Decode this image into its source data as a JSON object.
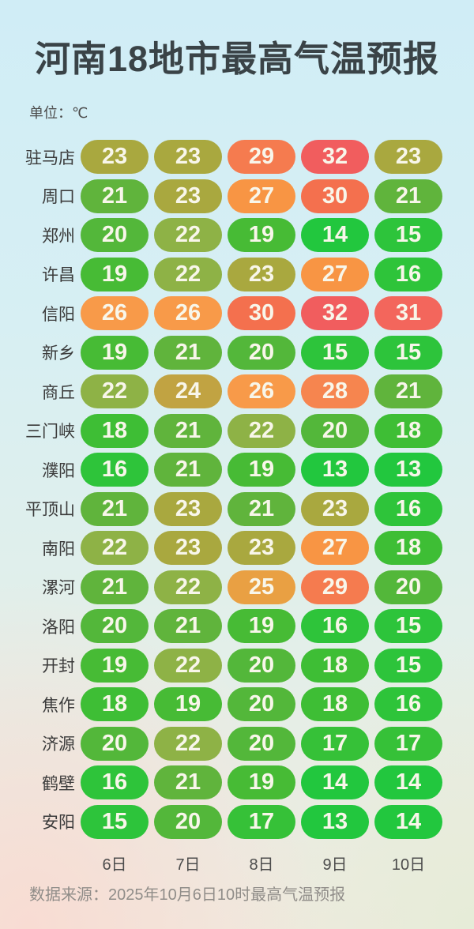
{
  "title": "河南18地市最高气温预报",
  "unit_label": "单位：℃",
  "footer": "数据来源：2025年10月6日10时最高气温预报",
  "chart_data": {
    "type": "heatmap",
    "title": "河南18地市最高气温预报",
    "unit": "℃",
    "columns": [
      "6日",
      "7日",
      "8日",
      "9日",
      "10日"
    ],
    "rows": [
      {
        "city": "驻马店",
        "temps": [
          23,
          23,
          29,
          32,
          23
        ]
      },
      {
        "city": "周口",
        "temps": [
          21,
          23,
          27,
          30,
          21
        ]
      },
      {
        "city": "郑州",
        "temps": [
          20,
          22,
          19,
          14,
          15
        ]
      },
      {
        "city": "许昌",
        "temps": [
          19,
          22,
          23,
          27,
          16
        ]
      },
      {
        "city": "信阳",
        "temps": [
          26,
          26,
          30,
          32,
          31
        ]
      },
      {
        "city": "新乡",
        "temps": [
          19,
          21,
          20,
          15,
          15
        ]
      },
      {
        "city": "商丘",
        "temps": [
          22,
          24,
          26,
          28,
          21
        ]
      },
      {
        "city": "三门峡",
        "temps": [
          18,
          21,
          22,
          20,
          18
        ]
      },
      {
        "city": "濮阳",
        "temps": [
          16,
          21,
          19,
          13,
          13
        ]
      },
      {
        "city": "平顶山",
        "temps": [
          21,
          23,
          21,
          23,
          16
        ]
      },
      {
        "city": "南阳",
        "temps": [
          22,
          23,
          23,
          27,
          18
        ]
      },
      {
        "city": "漯河",
        "temps": [
          21,
          22,
          25,
          29,
          20
        ]
      },
      {
        "city": "洛阳",
        "temps": [
          20,
          21,
          19,
          16,
          15
        ]
      },
      {
        "city": "开封",
        "temps": [
          19,
          22,
          20,
          18,
          15
        ]
      },
      {
        "city": "焦作",
        "temps": [
          18,
          19,
          20,
          18,
          16
        ]
      },
      {
        "city": "济源",
        "temps": [
          20,
          22,
          20,
          17,
          17
        ]
      },
      {
        "city": "鹤壁",
        "temps": [
          16,
          21,
          19,
          14,
          14
        ]
      },
      {
        "city": "安阳",
        "temps": [
          15,
          20,
          17,
          13,
          14
        ]
      }
    ],
    "color_scale": {
      "13": "#22c73e",
      "14": "#22c73e",
      "15": "#2dc43b",
      "16": "#2ec43a",
      "17": "#36c138",
      "18": "#3ebe35",
      "19": "#47bb35",
      "20": "#53b73a",
      "21": "#60b43c",
      "22": "#8eb246",
      "23": "#a9a83f",
      "24": "#c1a342",
      "25": "#e9a043",
      "26": "#f89a49",
      "27": "#f89544",
      "28": "#f6854f",
      "29": "#f57b4f",
      "30": "#f4704e",
      "31": "#f3665c",
      "32": "#f15d5e"
    },
    "pill_text_color": "#f8f6ea"
  }
}
